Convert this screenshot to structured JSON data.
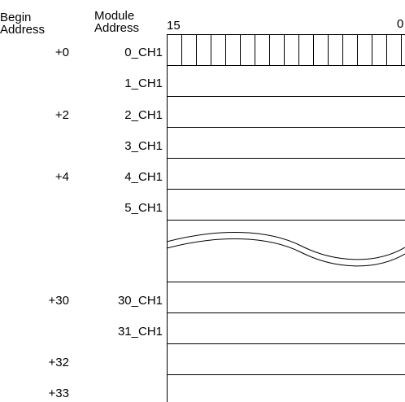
{
  "headers": {
    "begin_line1": "Begin",
    "begin_line2": "Address",
    "module_line1": "Module",
    "module_line2": "Address",
    "bit_high": "15",
    "bit_low": "0"
  },
  "rows": [
    {
      "begin": "+0",
      "module": "0_CH1"
    },
    {
      "begin": "",
      "module": "1_CH1"
    },
    {
      "begin": "+2",
      "module": "2_CH1"
    },
    {
      "begin": "",
      "module": "3_CH1"
    },
    {
      "begin": "+4",
      "module": "4_CH1"
    },
    {
      "begin": "",
      "module": "5_CH1"
    },
    {
      "begin": "+30",
      "module": "30_CH1"
    },
    {
      "begin": "",
      "module": "31_CH1"
    },
    {
      "begin": "+32",
      "module": ""
    },
    {
      "begin": "+33",
      "module": ""
    }
  ]
}
